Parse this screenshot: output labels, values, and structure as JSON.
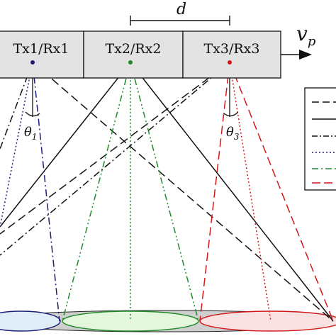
{
  "colors": {
    "box_fill": "#e3e3e3",
    "box_stroke": "#222222",
    "black": "#111111",
    "navy": "#1b1f78",
    "green": "#1f8a2a",
    "red": "#d01818",
    "ellipse_grey": "#cfcfcf",
    "ellipse_blue": "#e1ecf9",
    "ellipse_green": "#e4f6dc",
    "ellipse_red": "#fbe2e2"
  },
  "transceivers": [
    {
      "label": "Tx1/Rx1"
    },
    {
      "label": "Tx2/Rx2"
    },
    {
      "label": "Tx3/Rx3"
    }
  ],
  "labels": {
    "spacing": "d",
    "velocity_main": "v",
    "velocity_sub": "p",
    "angle1_main": "θ",
    "angle1_sub": "1",
    "angle3_main": "θ",
    "angle3_sub": "3"
  },
  "icons": {
    "velocity_arrow": "arrow-right-icon",
    "dimension": "dimension-bracket-icon"
  }
}
